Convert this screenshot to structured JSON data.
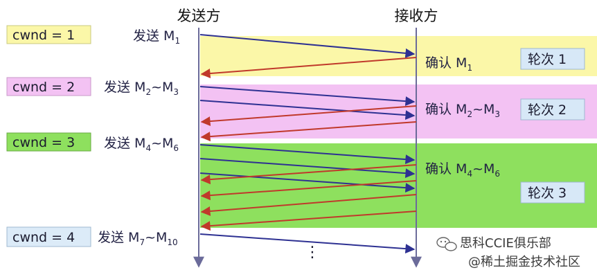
{
  "colors": {
    "yellow_band": "#fbf7a8",
    "pink_band": "#f3c2f3",
    "green_band": "#8ee05e",
    "box_yellow": "#fbf7a8",
    "box_pink": "#f3c2f3",
    "box_green": "#8ee05e",
    "box_blue": "#dcebf8",
    "round_box": "#d7e8f7",
    "send_arrow": "#2e3192",
    "ack_arrow": "#c0392b",
    "timeline": "#6b6b9a"
  },
  "headers": {
    "sender": "发送方",
    "receiver": "接收方"
  },
  "cwnd_labels": [
    "cwnd = 1",
    "cwnd = 2",
    "cwnd = 3",
    "cwnd = 4"
  ],
  "send_labels": [
    {
      "prefix": "发送  M",
      "a": "1",
      "tilde": "",
      "b": ""
    },
    {
      "prefix": "发送  M",
      "a": "2",
      "tilde": "~M",
      "b": "3"
    },
    {
      "prefix": "发送  M",
      "a": "4",
      "tilde": "~M",
      "b": "6"
    },
    {
      "prefix": "发送  M",
      "a": "7",
      "tilde": "~M",
      "b": "10"
    }
  ],
  "ack_labels": [
    {
      "prefix": "确认  M",
      "a": "1",
      "tilde": "",
      "b": ""
    },
    {
      "prefix": "确认  M",
      "a": "2",
      "tilde": "~M",
      "b": "3"
    },
    {
      "prefix": "确认  M",
      "a": "4",
      "tilde": "~M",
      "b": "6"
    }
  ],
  "round_labels": [
    "轮次  1",
    "轮次  2",
    "轮次  3"
  ],
  "ellipsis": "⋮",
  "watermark": {
    "line1": "思科CCIE俱乐部",
    "line2": "@稀土掘金技术社区",
    "icon": "wechat-icon"
  }
}
